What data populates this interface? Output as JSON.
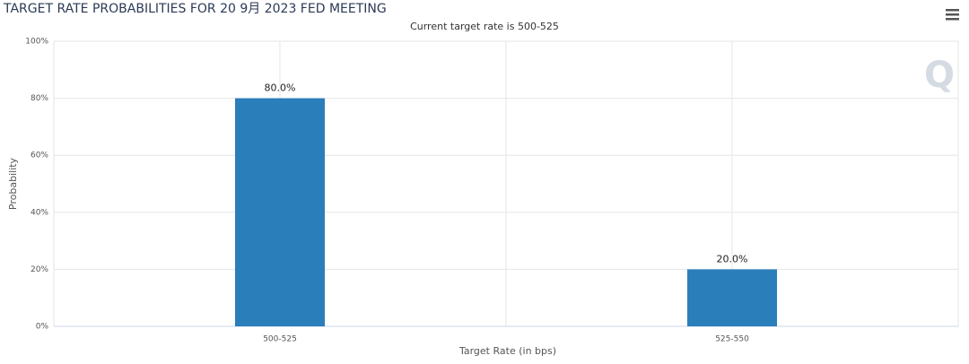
{
  "chart_data": {
    "type": "bar",
    "title": "TARGET RATE PROBABILITIES FOR 20 9月 2023 FED MEETING",
    "subtitle": "Current target rate is 500-525",
    "x_label": "Target Rate (in bps)",
    "y_label": "Probability",
    "categories": [
      "500-525",
      "525-550"
    ],
    "values": [
      80,
      20
    ],
    "value_labels": [
      "80.0%",
      "20.0%"
    ],
    "color": "#2a7fba",
    "ylim": [
      0,
      100
    ],
    "yticks": [
      {
        "value": 0,
        "label": "0%"
      },
      {
        "value": 20,
        "label": "20%"
      },
      {
        "value": 40,
        "label": "40%"
      },
      {
        "value": 60,
        "label": "60%"
      },
      {
        "value": 80,
        "label": "80%"
      },
      {
        "value": 100,
        "label": "100%"
      }
    ],
    "grid": true
  }
}
